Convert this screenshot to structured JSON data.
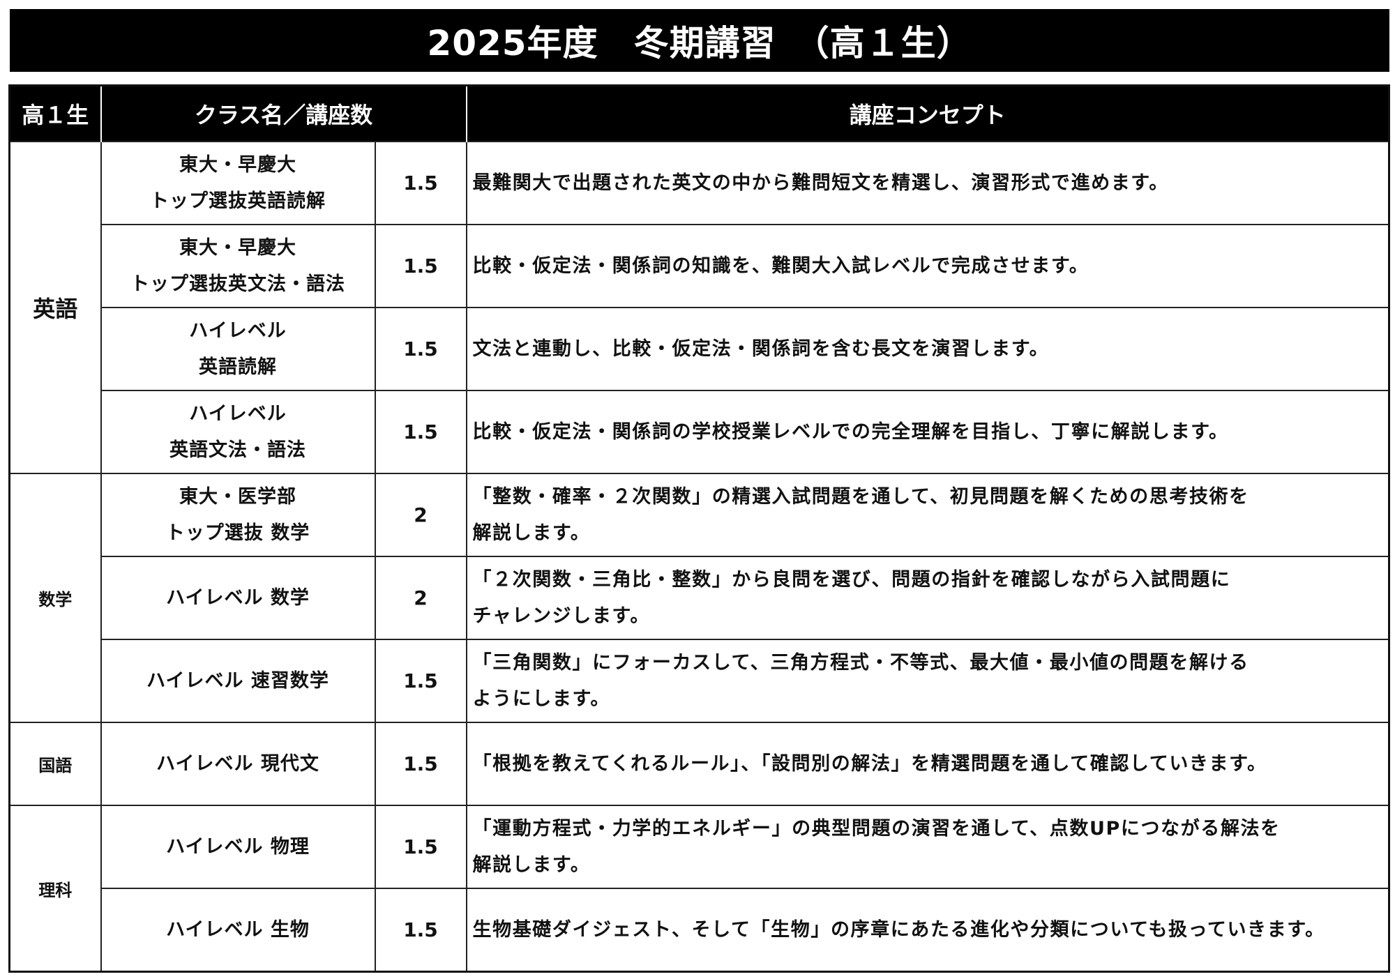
{
  "title": "2025年度　冬期講習　（高１生）",
  "headers": {
    "grade": "高１生",
    "class": "クラス名／講座数",
    "concept": "講座コンセプト"
  },
  "groups": [
    {
      "subject": "英語",
      "rows": [
        {
          "name": [
            "東大・早慶大",
            "トップ選抜英語読解"
          ],
          "count": "1.5",
          "concept": [
            "最難関大で出題された英文の中から難問短文を精選し、演習形式で進めます。"
          ]
        },
        {
          "name": [
            "東大・早慶大",
            "トップ選抜英文法・語法"
          ],
          "count": "1.5",
          "concept": [
            "比較・仮定法・関係詞の知識を、難関大入試レベルで完成させます。"
          ]
        },
        {
          "name": [
            "ハイレベル",
            "英語読解"
          ],
          "count": "1.5",
          "concept": [
            "文法と連動し、比較・仮定法・関係詞を含む長文を演習します。"
          ]
        },
        {
          "name": [
            "ハイレベル",
            "英語文法・語法"
          ],
          "count": "1.5",
          "concept": [
            "比較・仮定法・関係詞の学校授業レベルでの完全理解を目指し、丁寧に解説します。"
          ]
        }
      ]
    },
    {
      "subject": "数学",
      "rows": [
        {
          "name": [
            "東大・医学部",
            "トップ選抜 数学"
          ],
          "count": "2",
          "concept": [
            "「整数・確率・２次関数」の精選入試問題を通して、初見問題を解くための思考技術を",
            "解説します。"
          ]
        },
        {
          "name": [
            "ハイレベル 数学"
          ],
          "count": "2",
          "concept": [
            "「２次関数・三角比・整数」から良問を選び、問題の指針を確認しながら入試問題に",
            "チャレンジします。"
          ]
        },
        {
          "name": [
            "ハイレベル 速習数学"
          ],
          "count": "1.5",
          "concept": [
            "「三角関数」にフォーカスして、三角方程式・不等式、最大値・最小値の問題を解ける",
            "ようにします。"
          ]
        }
      ]
    },
    {
      "subject": "国語",
      "rows": [
        {
          "name": [
            "ハイレベル 現代文"
          ],
          "count": "1.5",
          "concept": [
            "「根拠を教えてくれるルール」、「設問別の解法」を精選問題を通して確認していきます。"
          ]
        }
      ]
    },
    {
      "subject": "理科",
      "rows": [
        {
          "name": [
            "ハイレベル 物理"
          ],
          "count": "1.5",
          "concept": [
            "「運動方程式・力学的エネルギー」の典型問題の演習を通して、点数UPにつながる解法を",
            "解説します。"
          ]
        },
        {
          "name": [
            "ハイレベル 生物"
          ],
          "count": "1.5",
          "concept": [
            "生物基礎ダイジェスト、そして「生物」の序章にあたる進化や分類についても扱っていきます。"
          ]
        }
      ]
    }
  ]
}
